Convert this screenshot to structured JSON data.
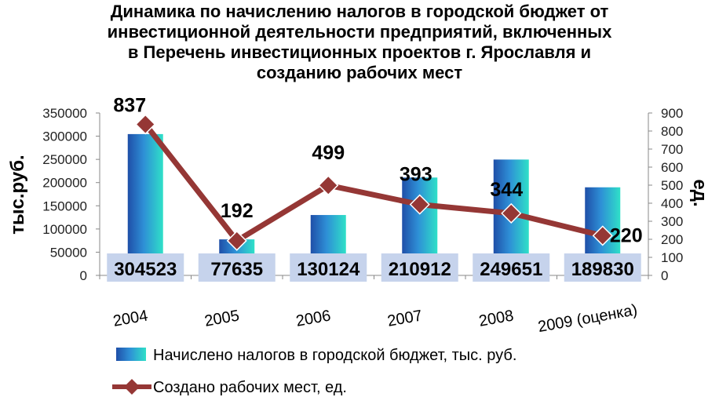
{
  "chart_data": {
    "type": "bar",
    "title_lines": [
      "Динамика по начислению налогов в городской бюджет от",
      "инвестиционной деятельности предприятий, включенных",
      "в Перечень инвестиционных проектов г. Ярославля и",
      "созданию рабочих мест"
    ],
    "categories": [
      "2004",
      "2005",
      "2006",
      "2007",
      "2008",
      "2009 (оценка)"
    ],
    "series": [
      {
        "name": "Начислено налогов в городской бюджет, тыс. руб.",
        "type": "bar",
        "axis": "left",
        "values": [
          304523,
          77635,
          130124,
          210912,
          249651,
          189830
        ]
      },
      {
        "name": "Создано рабочих мест, ед.",
        "type": "line",
        "axis": "right",
        "values": [
          837,
          192,
          499,
          393,
          344,
          220
        ]
      }
    ],
    "ylabel": "тыс.руб.",
    "y2label": "ед.",
    "ylim": [
      0,
      350000
    ],
    "y2lim": [
      0,
      900
    ],
    "yticks": [
      "0",
      "50000",
      "100000",
      "150000",
      "200000",
      "250000",
      "300000",
      "350000"
    ],
    "y2ticks": [
      "0",
      "100",
      "200",
      "300",
      "400",
      "500",
      "600",
      "700",
      "800",
      "900"
    ],
    "grid": false,
    "legend": "bottom",
    "colors": {
      "bar_dark": "#1f4fa8",
      "bar_mid": "#2e8fd6",
      "bar_light": "#2fe0c8",
      "line": "#953735",
      "marker": "#953735",
      "label_box": "#c6d3ec"
    }
  }
}
